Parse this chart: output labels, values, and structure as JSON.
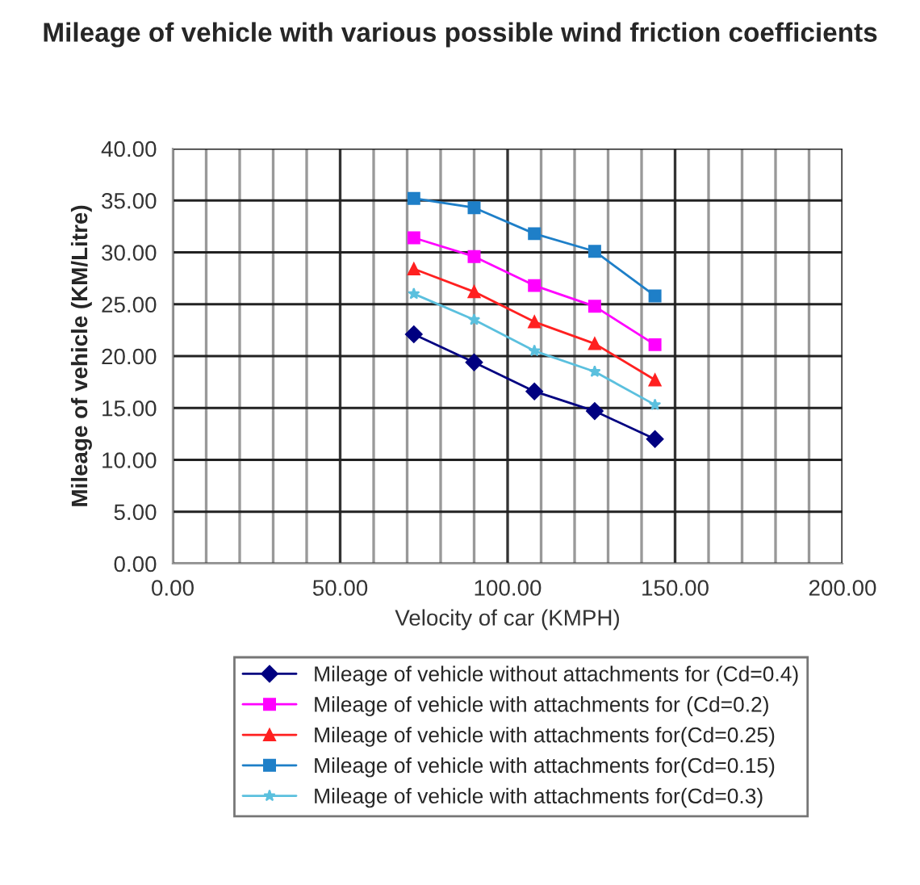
{
  "chart_data": {
    "type": "line",
    "title": "Mileage of vehicle with various possible wind friction coefficients",
    "xlabel": "Velocity of car (KMPH)",
    "ylabel": "Mileage of vehicle (KM/Litre)",
    "x": [
      72,
      90,
      108,
      126,
      144
    ],
    "series": [
      {
        "name": "Mileage of vehicle without attachments for (Cd=0.4)",
        "color": "#000080",
        "marker": "diamond",
        "values": [
          22.1,
          19.4,
          16.6,
          14.7,
          12.0
        ]
      },
      {
        "name": "Mileage of vehicle with attachments for (Cd=0.2)",
        "color": "#ff00ff",
        "marker": "square",
        "values": [
          31.4,
          29.6,
          26.8,
          24.8,
          21.1
        ]
      },
      {
        "name": "Mileage of vehicle with attachments for(Cd=0.25)",
        "color": "#ff2020",
        "marker": "triangle",
        "values": [
          28.4,
          26.2,
          23.3,
          21.2,
          17.7
        ]
      },
      {
        "name": "Mileage of vehicle with attachments for(Cd=0.15)",
        "color": "#1e7fc8",
        "marker": "square",
        "values": [
          35.2,
          34.3,
          31.8,
          30.1,
          25.8
        ]
      },
      {
        "name": "Mileage of vehicle with attachments for(Cd=0.3)",
        "color": "#5bc0de",
        "marker": "star",
        "values": [
          26.0,
          23.5,
          20.5,
          18.5,
          15.3
        ]
      }
    ],
    "xlim": [
      0,
      200
    ],
    "xticks": [
      {
        "value": 0,
        "label": "0.00"
      },
      {
        "value": 50,
        "label": "50.00"
      },
      {
        "value": 100,
        "label": "100.00"
      },
      {
        "value": 150,
        "label": "150.00"
      },
      {
        "value": 200,
        "label": "200.00"
      }
    ],
    "ylim": [
      0,
      40
    ],
    "yticks": [
      {
        "value": 0,
        "label": "0.00"
      },
      {
        "value": 5,
        "label": "5.00"
      },
      {
        "value": 10,
        "label": "10.00"
      },
      {
        "value": 15,
        "label": "15.00"
      },
      {
        "value": 20,
        "label": "20.00"
      },
      {
        "value": 25,
        "label": "25.00"
      },
      {
        "value": 30,
        "label": "30.00"
      },
      {
        "value": 35,
        "label": "35.00"
      },
      {
        "value": 40,
        "label": "40.00"
      }
    ],
    "grid": true,
    "legend": "bottom",
    "line_style": "solid"
  }
}
